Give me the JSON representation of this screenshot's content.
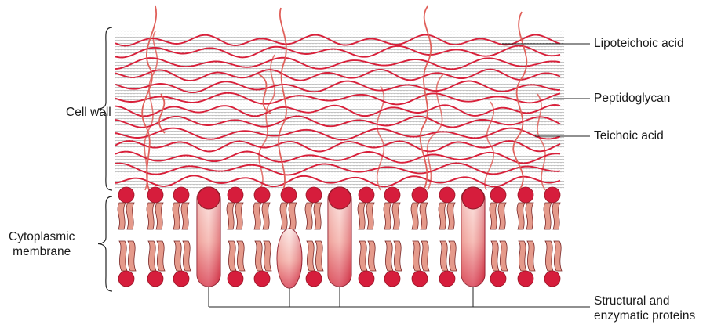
{
  "figure": {
    "labels": {
      "cell_wall": "Cell wall",
      "cytoplasmic_membrane_line1": "Cytoplasmic",
      "cytoplasmic_membrane_line2": "membrane",
      "lipoteichoic_acid": "Lipoteichoic acid",
      "peptidoglycan": "Peptidoglycan",
      "teichoic_acid": "Teichoic acid",
      "proteins_line1": "Structural and",
      "proteins_line2": "enzymatic proteins"
    },
    "colors": {
      "fiber_red": "#d8203a",
      "lipoteichoic": "#e0605a",
      "head_red": "#d61d3c",
      "tail_fill": "#e59a8b",
      "tail_stroke": "#7a2a2a",
      "mesh_gray": "#8a8a8a",
      "protein_light": "#fbe6e3"
    }
  }
}
